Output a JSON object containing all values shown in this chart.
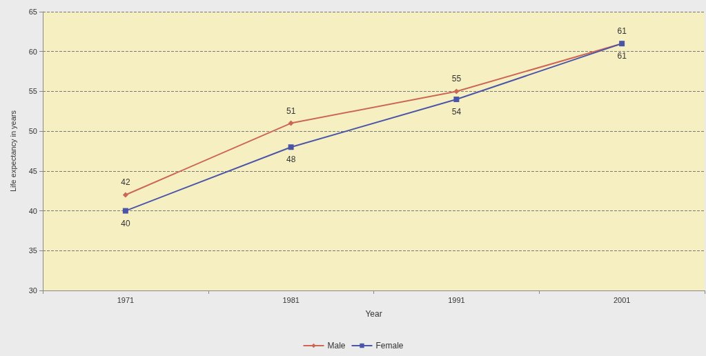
{
  "chart_data": {
    "type": "line",
    "xlabel": "Year",
    "ylabel": "Life expectancy in years",
    "categories": [
      "1971",
      "1981",
      "1991",
      "2001"
    ],
    "series": [
      {
        "name": "Male",
        "color": "#cc6655",
        "values": [
          42,
          51,
          55,
          61
        ],
        "marker": "diamond"
      },
      {
        "name": "Female",
        "color": "#4b55a8",
        "values": [
          40,
          48,
          54,
          61
        ],
        "marker": "square"
      }
    ],
    "ylim": [
      30,
      65
    ],
    "yticks": [
      30,
      35,
      40,
      45,
      50,
      55,
      60,
      65
    ],
    "grid": "y",
    "legend": "bottom",
    "data_labels": true
  }
}
